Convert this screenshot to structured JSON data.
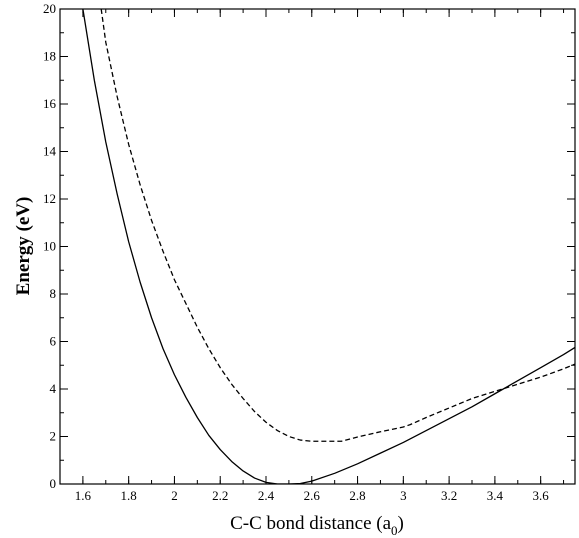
{
  "chart_data": {
    "type": "line",
    "title": "",
    "xlabel": "C-C bond distance (a",
    "xlabel_subscript": "0",
    "xlabel_close": ")",
    "ylabel": "Energy (eV)",
    "xlim": [
      1.5,
      3.75
    ],
    "ylim": [
      0,
      20
    ],
    "x_ticks": [
      "1.6",
      "1.8",
      "2",
      "2.2",
      "2.4",
      "2.6",
      "2.8",
      "3",
      "3.2",
      "3.4",
      "3.6"
    ],
    "y_ticks": [
      "0",
      "2",
      "4",
      "6",
      "8",
      "10",
      "12",
      "14",
      "16",
      "18",
      "20"
    ],
    "grid": false,
    "legend": "none",
    "series": [
      {
        "style": "solid",
        "color": "#000000",
        "x": [
          1.6,
          1.65,
          1.7,
          1.75,
          1.8,
          1.85,
          1.9,
          1.95,
          2.0,
          2.05,
          2.1,
          2.15,
          2.2,
          2.25,
          2.3,
          2.35,
          2.4,
          2.45,
          2.5,
          2.55,
          2.6,
          2.7,
          2.8,
          2.9,
          3.0,
          3.1,
          3.2,
          3.3,
          3.4,
          3.5,
          3.6,
          3.7,
          3.75
        ],
        "y": [
          20.0,
          17.0,
          14.4,
          12.2,
          10.2,
          8.5,
          7.0,
          5.7,
          4.6,
          3.65,
          2.8,
          2.05,
          1.45,
          0.95,
          0.55,
          0.25,
          0.07,
          0.0,
          0.0,
          0.02,
          0.12,
          0.45,
          0.85,
          1.3,
          1.75,
          2.25,
          2.75,
          3.25,
          3.8,
          4.35,
          4.9,
          5.45,
          5.75
        ]
      },
      {
        "style": "dashed",
        "color": "#000000",
        "x": [
          1.68,
          1.7,
          1.75,
          1.8,
          1.85,
          1.9,
          1.95,
          2.0,
          2.05,
          2.1,
          2.15,
          2.2,
          2.25,
          2.3,
          2.35,
          2.4,
          2.45,
          2.5,
          2.55,
          2.6,
          2.7,
          2.73,
          2.8,
          2.9,
          3.0,
          3.03,
          3.1,
          3.2,
          3.3,
          3.4,
          3.5,
          3.6,
          3.7,
          3.75
        ],
        "y": [
          20.0,
          18.6,
          16.3,
          14.3,
          12.6,
          11.1,
          9.8,
          8.6,
          7.6,
          6.6,
          5.7,
          4.9,
          4.2,
          3.6,
          3.05,
          2.6,
          2.25,
          2.0,
          1.85,
          1.8,
          1.8,
          1.8,
          1.98,
          2.2,
          2.4,
          2.5,
          2.8,
          3.2,
          3.6,
          3.9,
          4.2,
          4.5,
          4.85,
          5.05
        ]
      }
    ]
  }
}
